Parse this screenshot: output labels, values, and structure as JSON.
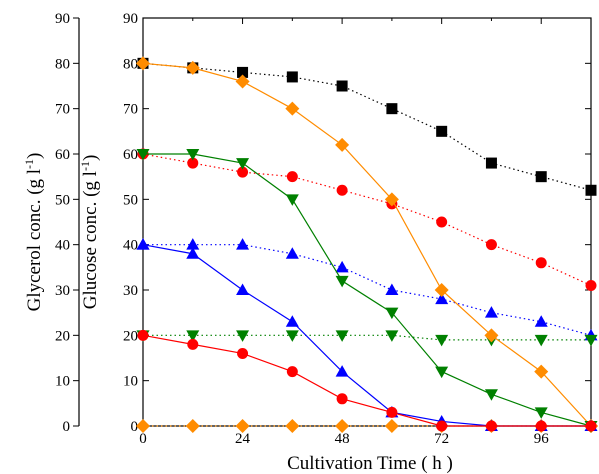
{
  "chart_data": {
    "type": "line",
    "xlabel": "Cultivation Time ( h )",
    "ylabel_outer": "Glycerol conc. (g l",
    "ylabel_inner": "Glucose conc. (g l",
    "ylabel_suffix": ")",
    "ylabel_exponent": "-1",
    "xlim": [
      0,
      108
    ],
    "ylim": [
      0,
      90
    ],
    "x_ticks": [
      "0",
      "24",
      "48",
      "72",
      "96"
    ],
    "y_ticks": [
      "0",
      "10",
      "20",
      "30",
      "40",
      "50",
      "60",
      "70",
      "80",
      "90"
    ],
    "grid": false,
    "series": [
      {
        "marker": "square",
        "color": "#000000",
        "line_style": "dotted",
        "x": [
          0,
          12,
          24,
          36,
          48,
          60,
          72,
          84,
          96,
          108
        ],
        "values": [
          80,
          79,
          78,
          77,
          75,
          70,
          65,
          58,
          55,
          52
        ]
      },
      {
        "marker": "circle",
        "color": "#ff0000",
        "line_style": "dotted",
        "x": [
          0,
          12,
          24,
          36,
          48,
          60,
          72,
          84,
          96,
          108
        ],
        "values": [
          60,
          58,
          56,
          55,
          52,
          49,
          45,
          40,
          36,
          31
        ]
      },
      {
        "marker": "triangle-up",
        "color": "#0000ff",
        "line_style": "dotted",
        "x": [
          0,
          12,
          24,
          36,
          48,
          60,
          72,
          84,
          96,
          108
        ],
        "values": [
          40,
          40,
          40,
          38,
          35,
          30,
          28,
          25,
          23,
          20
        ]
      },
      {
        "marker": "triangle-down",
        "color": "#008000",
        "line_style": "dotted",
        "x": [
          0,
          12,
          24,
          36,
          48,
          60,
          72,
          84,
          96,
          108
        ],
        "values": [
          20,
          20,
          20,
          20,
          20,
          20,
          19,
          19,
          19,
          19
        ]
      },
      {
        "marker": "diamond",
        "color": "#ff8c00",
        "line_style": "dotted",
        "x": [
          0,
          12,
          24,
          36,
          48,
          60,
          72,
          84,
          96,
          108
        ],
        "values": [
          0,
          0,
          0,
          0,
          0,
          0,
          0,
          0,
          0,
          0
        ]
      },
      {
        "marker": "diamond",
        "color": "#ff8c00",
        "line_style": "solid",
        "x": [
          0,
          12,
          24,
          36,
          48,
          60,
          72,
          84,
          96,
          108
        ],
        "values": [
          80,
          79,
          76,
          70,
          62,
          50,
          30,
          20,
          12,
          0
        ]
      },
      {
        "marker": "triangle-down",
        "color": "#008000",
        "line_style": "solid",
        "x": [
          0,
          12,
          24,
          36,
          48,
          60,
          72,
          84,
          96,
          108
        ],
        "values": [
          60,
          60,
          58,
          50,
          32,
          25,
          12,
          7,
          3,
          0
        ]
      },
      {
        "marker": "triangle-up",
        "color": "#0000ff",
        "line_style": "solid",
        "x": [
          0,
          12,
          24,
          36,
          48,
          60,
          72,
          84,
          96,
          108
        ],
        "values": [
          40,
          38,
          30,
          23,
          12,
          3,
          1,
          0,
          0,
          0
        ]
      },
      {
        "marker": "circle",
        "color": "#ff0000",
        "line_style": "solid",
        "x": [
          0,
          12,
          24,
          36,
          48,
          60,
          72,
          84,
          96,
          108
        ],
        "values": [
          20,
          18,
          16,
          12,
          6,
          3,
          0,
          0,
          0,
          0
        ]
      }
    ]
  }
}
